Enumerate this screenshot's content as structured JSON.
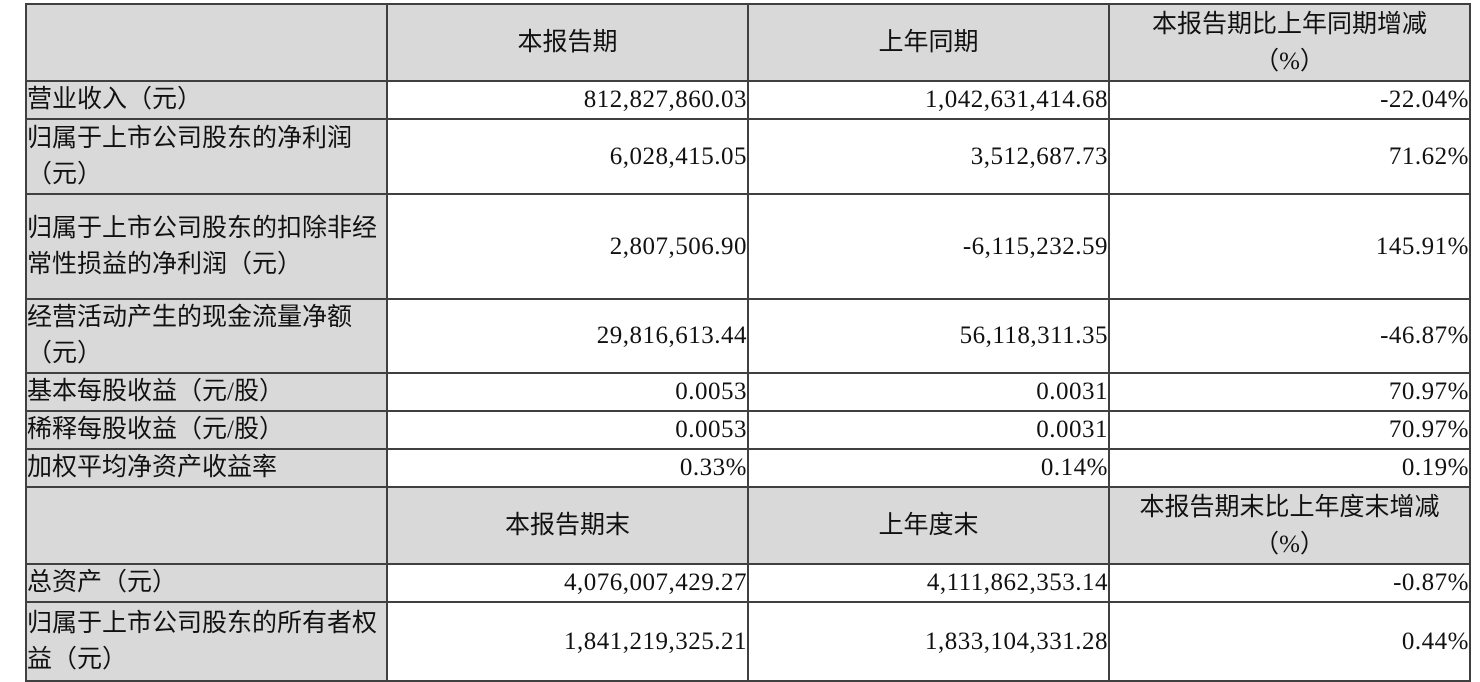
{
  "colors": {
    "cell_shading": "#d9d9d9",
    "border": "#404040",
    "text": "#111111",
    "value_background": "#ffffff"
  },
  "table": {
    "header1": {
      "corner": "",
      "period_label": "本报告期",
      "prior_label": "上年同期",
      "change_line1": "本报告期比上年同期增减",
      "change_line2": "（%）"
    },
    "rows1": [
      {
        "label": "营业收入（元）",
        "current": "812,827,860.03",
        "prior": "1,042,631,414.68",
        "change": "-22.04%"
      },
      {
        "label": "归属于上市公司股东的净利润（元）",
        "current": "6,028,415.05",
        "prior": "3,512,687.73",
        "change": "71.62%"
      },
      {
        "label": "归属于上市公司股东的扣除非经常性损益的净利润（元）",
        "current": "2,807,506.90",
        "prior": "-6,115,232.59",
        "change": "145.91%"
      },
      {
        "label": "经营活动产生的现金流量净额（元）",
        "current": "29,816,613.44",
        "prior": "56,118,311.35",
        "change": "-46.87%"
      },
      {
        "label": "基本每股收益（元/股）",
        "current": "0.0053",
        "prior": "0.0031",
        "change": "70.97%"
      },
      {
        "label": "稀释每股收益（元/股）",
        "current": "0.0053",
        "prior": "0.0031",
        "change": "70.97%"
      },
      {
        "label": "加权平均净资产收益率",
        "current": "0.33%",
        "prior": "0.14%",
        "change": "0.19%"
      }
    ],
    "header2": {
      "corner": "",
      "period_label": "本报告期末",
      "prior_label": "上年度末",
      "change_line1": "本报告期末比上年度末增减",
      "change_line2": "（%）"
    },
    "rows2": [
      {
        "label": "总资产（元）",
        "current": "4,076,007,429.27",
        "prior": "4,111,862,353.14",
        "change": "-0.87%"
      },
      {
        "label": "归属于上市公司股东的所有者权益（元）",
        "current": "1,841,219,325.21",
        "prior": "1,833,104,331.28",
        "change": "0.44%"
      }
    ]
  }
}
